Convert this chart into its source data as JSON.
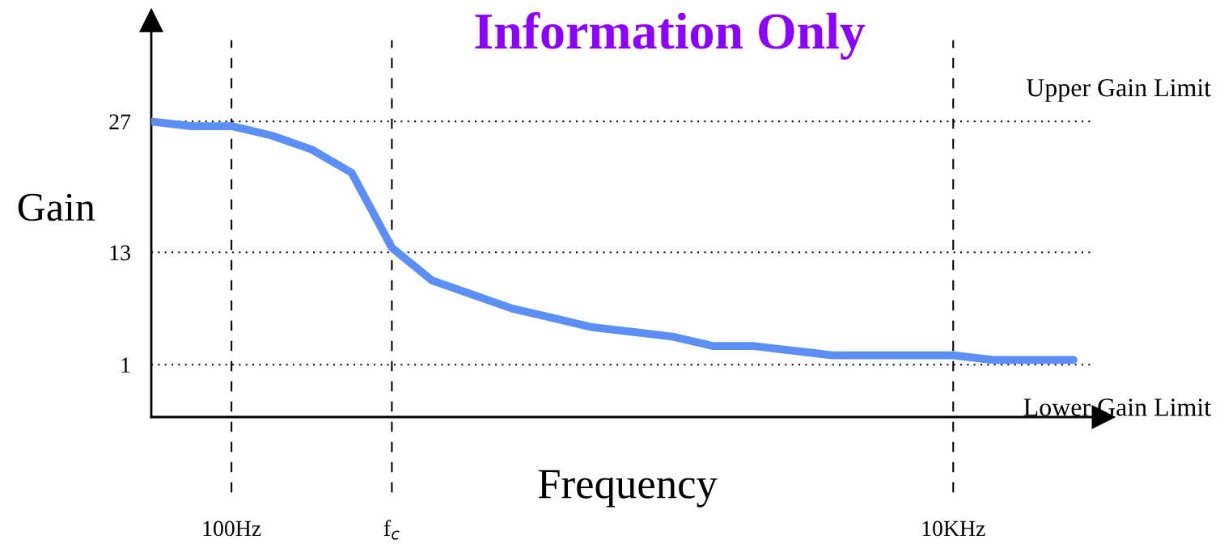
{
  "chart_data": {
    "type": "line",
    "title": "Information Only",
    "xlabel": "Frequency",
    "ylabel": "Gain",
    "categories": [
      null,
      null,
      "100Hz",
      null,
      null,
      null,
      "f$_{c}$",
      null,
      null,
      null,
      null,
      null,
      null,
      null,
      null,
      null,
      null,
      null,
      null,
      null,
      "10KHz",
      null,
      null,
      null
    ],
    "ylim": [
      -4.6,
      37.8
    ],
    "yticks": [
      1,
      13,
      27
    ],
    "series": [
      {
        "color": "#5b8ff5",
        "values": [
          27,
          26.5,
          26.5,
          25.5,
          24,
          21.5,
          13.5,
          10,
          8.5,
          7,
          6,
          5,
          4.5,
          4,
          3,
          3,
          2.5,
          2,
          2,
          2,
          2,
          1.5,
          1.5,
          1.5
        ]
      }
    ],
    "ref_lines": [
      {
        "axis": "y",
        "value": 27,
        "label": "Upper Gain Limit",
        "line_style": "dotted",
        "color": "#000000"
      },
      {
        "axis": "y",
        "value": 13,
        "line_style": "dotted",
        "color": "#000000"
      },
      {
        "axis": "y",
        "value": 1,
        "label": "Lower Gain Limit",
        "line_style": "dotted",
        "color": "#000000"
      }
    ],
    "grid": "x",
    "marker": "none",
    "line_style": "solid"
  }
}
